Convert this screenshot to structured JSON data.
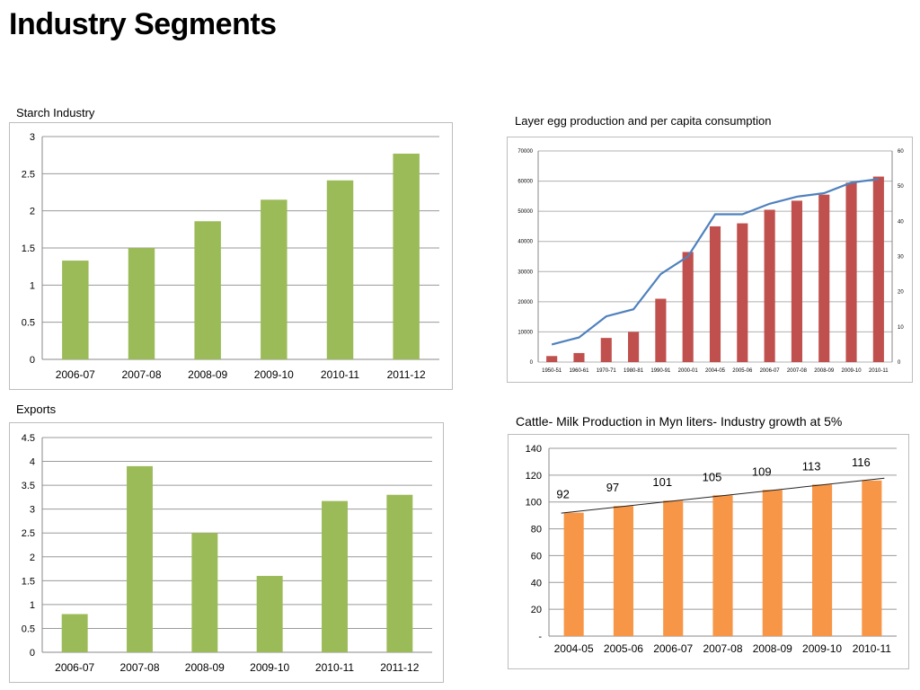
{
  "page": {
    "title": "Industry Segments"
  },
  "chart_data": [
    {
      "id": "starch",
      "type": "bar",
      "title": "Starch Industry",
      "categories": [
        "2006-07",
        "2007-08",
        "2008-09",
        "2009-10",
        "2010-11",
        "2011-12"
      ],
      "values": [
        1.33,
        1.5,
        1.86,
        2.15,
        2.41,
        2.77
      ],
      "ylim": [
        0,
        3
      ],
      "yticks": [
        "0",
        "0.5",
        "1",
        "1.5",
        "2",
        "2.5",
        "3"
      ],
      "grid": true,
      "color": "#9bbb59"
    },
    {
      "id": "eggs",
      "type": "bar",
      "title": "Layer egg production and per capita consumption",
      "categories": [
        "1950-51",
        "1960-61",
        "1970-71",
        "1980-81",
        "1990-91",
        "2000-01",
        "2004-05",
        "2005-06",
        "2006-07",
        "2007-08",
        "2008-09",
        "2009-10",
        "2010-11"
      ],
      "series": [
        {
          "name": "Egg production",
          "type": "bar",
          "axis": "left",
          "color": "#c0504d",
          "values": [
            2000,
            3000,
            8000,
            10000,
            21000,
            36500,
            45000,
            46000,
            50500,
            53500,
            55500,
            59500,
            61500
          ]
        },
        {
          "name": "Per capita consumption",
          "type": "line",
          "axis": "right",
          "color": "#4f81bd",
          "values": [
            5,
            7,
            13,
            15,
            25,
            30,
            42,
            42,
            45,
            47,
            48,
            51,
            52
          ]
        }
      ],
      "ylim": [
        0,
        70000
      ],
      "yticks": [
        "0",
        "10000",
        "20000",
        "30000",
        "40000",
        "50000",
        "60000",
        "70000"
      ],
      "y2lim": [
        0,
        60
      ],
      "y2ticks": [
        "0",
        "10",
        "20",
        "30",
        "40",
        "50",
        "60"
      ],
      "grid": true
    },
    {
      "id": "exports",
      "type": "bar",
      "title": "Exports",
      "categories": [
        "2006-07",
        "2007-08",
        "2008-09",
        "2009-10",
        "2010-11",
        "2011-12"
      ],
      "values": [
        0.8,
        3.9,
        2.5,
        1.6,
        3.17,
        3.3
      ],
      "ylim": [
        0,
        4.5
      ],
      "yticks": [
        "0",
        "0.5",
        "1",
        "1.5",
        "2",
        "2.5",
        "3",
        "3.5",
        "4",
        "4.5"
      ],
      "grid": true,
      "color": "#9bbb59"
    },
    {
      "id": "milk",
      "type": "bar",
      "title": "Cattle- Milk Production in Myn liters- Industry growth at 5%",
      "categories": [
        "2004-05",
        "2005-06",
        "2006-07",
        "2007-08",
        "2008-09",
        "2009-10",
        "2010-11"
      ],
      "values": [
        92,
        97,
        101,
        105,
        109,
        113,
        116
      ],
      "data_labels": [
        "92",
        "97",
        "101",
        "105",
        "109",
        "113",
        "116"
      ],
      "trendline": "linear",
      "ylim": [
        0,
        140
      ],
      "yticks": [
        "-",
        "20",
        "40",
        "60",
        "80",
        "100",
        "120",
        "140"
      ],
      "grid": true,
      "color": "#f79646"
    }
  ]
}
